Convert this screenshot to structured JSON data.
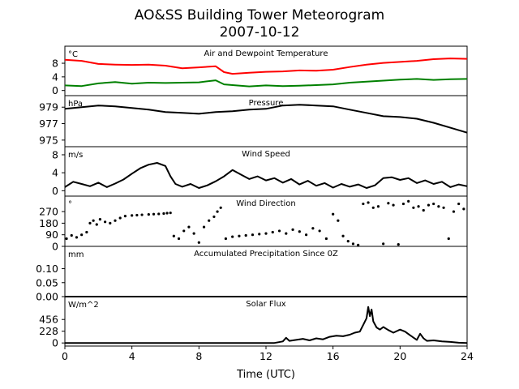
{
  "figure": {
    "title_line1": "AO&SS Building Tower Meteorogram",
    "title_line2": "2007-10-12",
    "xlabel": "Time (UTC)"
  },
  "chart_data": {
    "type": "line",
    "xlim": [
      0,
      24
    ],
    "xticks": [
      "0",
      "4",
      "8",
      "12",
      "16",
      "20",
      "24"
    ],
    "panels": [
      {
        "id": "temp",
        "title": "Air and Dewpoint Temperature",
        "unit": "°C",
        "ylim": [
          -1.5,
          13
        ],
        "yticks": [
          "0",
          "4",
          "8"
        ],
        "series": [
          {
            "color": "#ff0000",
            "x": [
              0,
              1,
              2,
              3,
              4,
              5,
              6,
              7,
              8,
              9,
              9.5,
              10,
              11,
              12,
              13,
              14,
              15,
              16,
              17,
              18,
              19,
              20,
              21,
              22,
              23,
              24
            ],
            "y": [
              9.0,
              8.7,
              7.8,
              7.6,
              7.5,
              7.6,
              7.3,
              6.5,
              6.8,
              7.1,
              5.4,
              4.9,
              5.2,
              5.5,
              5.6,
              5.9,
              5.8,
              6.1,
              6.9,
              7.6,
              8.1,
              8.4,
              8.7,
              9.2,
              9.4,
              9.3
            ]
          },
          {
            "color": "#008000",
            "x": [
              0,
              1,
              2,
              3,
              4,
              5,
              6,
              7,
              8,
              9,
              9.5,
              10,
              11,
              12,
              13,
              14,
              15,
              16,
              17,
              18,
              19,
              20,
              21,
              22,
              23,
              24
            ],
            "y": [
              1.5,
              1.3,
              2.1,
              2.5,
              2.0,
              2.3,
              2.2,
              2.3,
              2.4,
              3.0,
              1.8,
              1.6,
              1.2,
              1.5,
              1.3,
              1.4,
              1.6,
              1.8,
              2.3,
              2.6,
              2.9,
              3.2,
              3.4,
              3.1,
              3.3,
              3.4
            ]
          }
        ]
      },
      {
        "id": "pressure",
        "title": "Pressure",
        "unit": "hPa",
        "ylim": [
          974.2,
          980.4
        ],
        "yticks": [
          "975",
          "977",
          "979"
        ],
        "series": [
          {
            "color": "#000000",
            "x": [
              0,
              1,
              2,
              3,
              4,
              5,
              6,
              7,
              8,
              9,
              10,
              11,
              12,
              13,
              14,
              15,
              16,
              17,
              18,
              19,
              20,
              21,
              22,
              23,
              24
            ],
            "y": [
              978.8,
              979.0,
              979.2,
              979.1,
              978.9,
              978.7,
              978.4,
              978.3,
              978.2,
              978.4,
              978.5,
              978.7,
              978.8,
              979.2,
              979.3,
              979.2,
              979.1,
              978.7,
              978.3,
              977.9,
              977.8,
              977.6,
              977.1,
              976.5,
              975.9
            ]
          }
        ]
      },
      {
        "id": "wind_speed",
        "title": "Wind Speed",
        "unit": "m/s",
        "ylim": [
          -1.2,
          9.8
        ],
        "yticks": [
          "0",
          "4",
          "8"
        ],
        "series": [
          {
            "color": "#000000",
            "x": [
              0,
              0.5,
              1,
              1.5,
              2,
              2.5,
              3,
              3.5,
              4,
              4.5,
              5,
              5.5,
              6,
              6.3,
              6.6,
              7,
              7.5,
              8,
              8.5,
              9,
              9.5,
              10,
              10.5,
              11,
              11.5,
              12,
              12.5,
              13,
              13.5,
              14,
              14.5,
              15,
              15.5,
              16,
              16.5,
              17,
              17.5,
              18,
              18.5,
              19,
              19.5,
              20,
              20.5,
              21,
              21.5,
              22,
              22.5,
              23,
              23.5,
              24
            ],
            "y": [
              0.8,
              2.0,
              1.5,
              1.0,
              1.8,
              0.8,
              1.6,
              2.5,
              3.8,
              5.0,
              5.8,
              6.2,
              5.5,
              3.2,
              1.5,
              0.9,
              1.5,
              0.6,
              1.2,
              2.1,
              3.2,
              4.6,
              3.6,
              2.6,
              3.2,
              2.3,
              2.8,
              1.8,
              2.6,
              1.4,
              2.2,
              1.1,
              1.7,
              0.7,
              1.5,
              0.9,
              1.4,
              0.6,
              1.2,
              2.8,
              3.0,
              2.4,
              2.8,
              1.7,
              2.3,
              1.5,
              2.0,
              0.8,
              1.4,
              1.0
            ]
          }
        ]
      },
      {
        "id": "wind_dir",
        "title": "Wind Direction",
        "unit": "°",
        "type": "scatter",
        "ylim": [
          0,
          390
        ],
        "yticks": [
          "0",
          "90",
          "180",
          "270"
        ],
        "series": [
          {
            "color": "#000000",
            "x": [
              0.1,
              0.4,
              0.7,
              1.0,
              1.3,
              1.5,
              1.7,
              1.9,
              2.1,
              2.4,
              2.7,
              3.0,
              3.3,
              3.6,
              4.0,
              4.3,
              4.6,
              5.0,
              5.3,
              5.6,
              5.9,
              6.1,
              6.3,
              6.5,
              6.8,
              7.1,
              7.4,
              7.7,
              8.0,
              8.3,
              8.6,
              8.9,
              9.1,
              9.3,
              9.6,
              10.0,
              10.4,
              10.8,
              11.2,
              11.6,
              12.0,
              12.4,
              12.8,
              13.2,
              13.6,
              14.0,
              14.4,
              14.8,
              15.2,
              15.6,
              16.0,
              16.3,
              16.6,
              16.9,
              17.2,
              17.5,
              17.8,
              18.1,
              18.4,
              18.7,
              19.0,
              19.3,
              19.6,
              19.9,
              20.2,
              20.5,
              20.8,
              21.1,
              21.4,
              21.7,
              22.0,
              22.3,
              22.6,
              22.9,
              23.2,
              23.5,
              23.8
            ],
            "y": [
              60,
              85,
              70,
              90,
              110,
              180,
              200,
              170,
              210,
              190,
              180,
              200,
              220,
              235,
              240,
              242,
              245,
              248,
              250,
              252,
              255,
              258,
              260,
              80,
              60,
              120,
              150,
              100,
              30,
              150,
              200,
              230,
              270,
              300,
              60,
              75,
              80,
              85,
              90,
              95,
              100,
              110,
              120,
              100,
              130,
              115,
              90,
              140,
              120,
              60,
              250,
              200,
              80,
              40,
              20,
              10,
              330,
              340,
              300,
              310,
              20,
              335,
              320,
              15,
              330,
              350,
              300,
              310,
              280,
              320,
              330,
              310,
              300,
              60,
              270,
              330,
              290
            ]
          }
        ]
      },
      {
        "id": "precip",
        "title": "Accumulated Precipitation Since 0Z",
        "unit": "mm",
        "ylim": [
          0,
          0.18
        ],
        "yticks": [
          "0.00",
          "0.05",
          "0.10"
        ],
        "series": [
          {
            "color": "#000000",
            "x": [
              0,
              24
            ],
            "y": [
              0,
              0
            ]
          }
        ]
      },
      {
        "id": "solar",
        "title": "Solar Flux",
        "unit": "W/m^2",
        "ylim": [
          -60,
          900
        ],
        "yticks": [
          "0",
          "228",
          "456"
        ],
        "series": [
          {
            "color": "#000000",
            "x": [
              0,
              6,
              12.5,
              13.0,
              13.2,
              13.4,
              13.8,
              14.2,
              14.6,
              15.0,
              15.4,
              15.8,
              16.2,
              16.6,
              17.0,
              17.3,
              17.6,
              17.8,
              18.0,
              18.1,
              18.2,
              18.3,
              18.4,
              18.6,
              18.8,
              19.0,
              19.3,
              19.6,
              20.0,
              20.3,
              20.6,
              21.0,
              21.2,
              21.4,
              21.6,
              22.0,
              22.5,
              23.0,
              23.5,
              24
            ],
            "y": [
              0,
              0,
              0,
              30,
              100,
              40,
              60,
              80,
              50,
              90,
              70,
              120,
              140,
              130,
              160,
              200,
              220,
              350,
              480,
              700,
              520,
              650,
              420,
              300,
              260,
              310,
              250,
              200,
              260,
              220,
              150,
              60,
              180,
              90,
              40,
              50,
              30,
              20,
              5,
              0
            ]
          }
        ]
      }
    ]
  }
}
